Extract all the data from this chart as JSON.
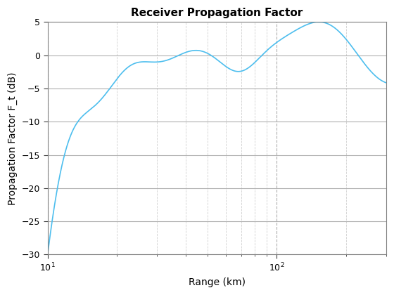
{
  "title": "Receiver Propagation Factor",
  "xlabel": "Range (km)",
  "ylabel": "Propagation Factor F_t (dB)",
  "xlim": [
    10,
    300
  ],
  "ylim": [
    -30,
    5
  ],
  "yticks": [
    5,
    0,
    -5,
    -10,
    -15,
    -20,
    -25,
    -30
  ],
  "line_color": "#4DBEEE",
  "line_width": 1.2,
  "bg_color": "#ffffff",
  "grid_major_color": "#b0b0b0",
  "grid_minor_color": "#d0d0d0",
  "title_fontsize": 11,
  "label_fontsize": 10
}
